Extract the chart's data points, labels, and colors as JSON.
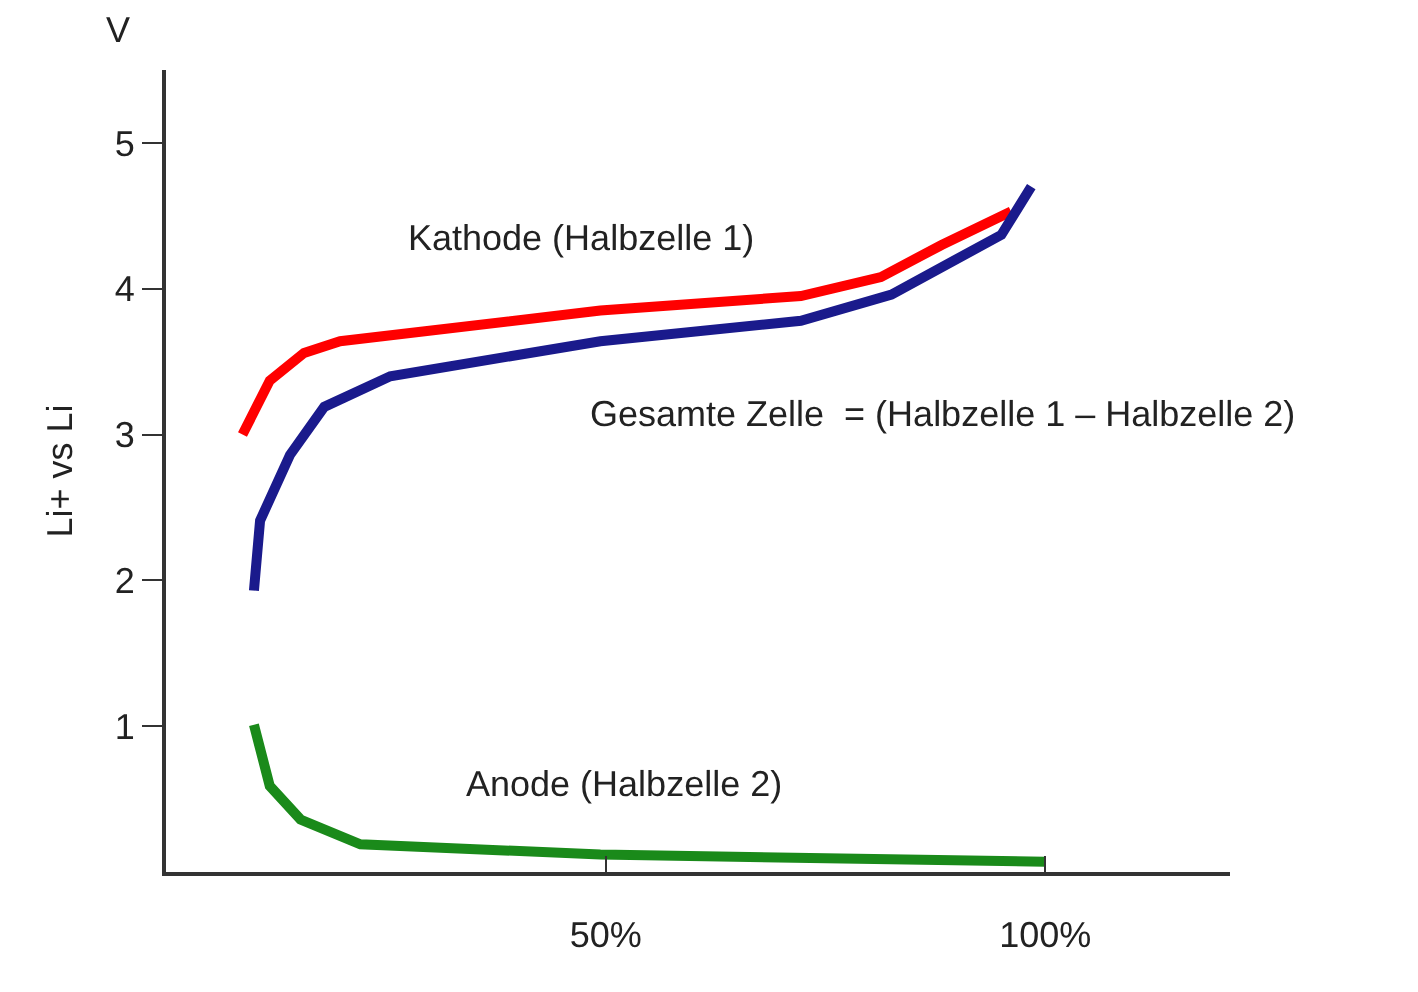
{
  "chart_data": {
    "type": "line",
    "ylabel": "Li+ vs Li",
    "annotations": [
      "V"
    ],
    "series": [
      {
        "name": "Kathode (Halbzelle 1)",
        "color": "#ff0000",
        "x": [
          8.7,
          11.8,
          15.7,
          19.8,
          49.4,
          72.2,
          81.3,
          88.2,
          96.1
        ],
        "values": [
          3.0,
          3.37,
          3.56,
          3.64,
          3.85,
          3.95,
          4.08,
          4.3,
          4.53
        ]
      },
      {
        "name": "Gesamte Zelle  = (Halbzelle 1 – Halbzelle 2)",
        "color": "#1a1a8c",
        "x": [
          10,
          10.7,
          14.1,
          18,
          25.5,
          49.4,
          72.2,
          82.5,
          95,
          98.4
        ],
        "values": [
          1.93,
          2.41,
          2.86,
          3.19,
          3.4,
          3.64,
          3.78,
          3.96,
          4.37,
          4.7
        ]
      },
      {
        "name": "Anode (Halbzelle 2)",
        "color": "#1a8a1a",
        "x": [
          10,
          11.8,
          15.3,
          22.1,
          49.4,
          100
        ],
        "values": [
          1.01,
          0.59,
          0.36,
          0.19,
          0.12,
          0.07
        ]
      }
    ],
    "xlim": [
      0,
      121
    ],
    "ylim": [
      0,
      5.5
    ],
    "xticks": [
      {
        "value": 50,
        "label": "50%"
      },
      {
        "value": 100,
        "label": "100%"
      }
    ],
    "yticks": [
      1,
      2,
      3,
      4,
      5
    ],
    "grid": false,
    "legend": false,
    "marker": "none",
    "line_style": "solid"
  }
}
